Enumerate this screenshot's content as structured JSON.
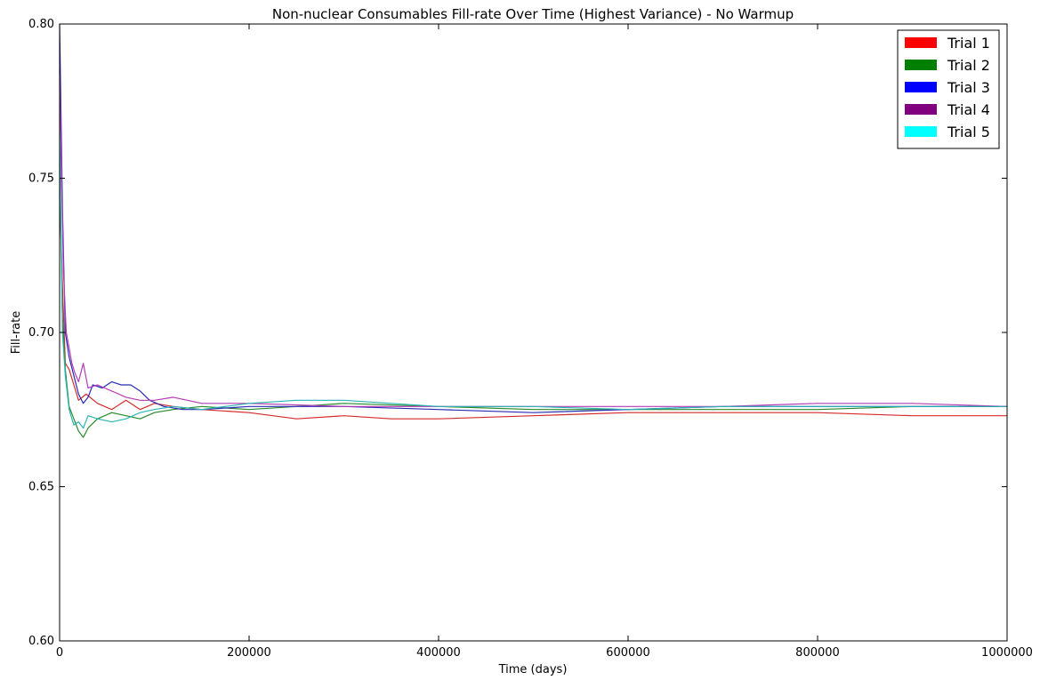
{
  "chart_data": {
    "type": "line",
    "title": "Non-nuclear Consumables Fill-rate Over Time (Highest Variance) - No Warmup",
    "xlabel": "Time (days)",
    "ylabel": "Fill-rate",
    "xlim": [
      0,
      1000000
    ],
    "ylim": [
      0.6,
      0.8
    ],
    "xticks": [
      0,
      200000,
      400000,
      600000,
      800000,
      1000000
    ],
    "xtick_labels": [
      "0",
      "200000",
      "400000",
      "600000",
      "800000",
      "1000000"
    ],
    "yticks": [
      0.6,
      0.65,
      0.7,
      0.75,
      0.8
    ],
    "ytick_labels": [
      "0.60",
      "0.65",
      "0.70",
      "0.75",
      "0.80"
    ],
    "grid": false,
    "legend_position": "top-right",
    "series": [
      {
        "name": "Trial 1",
        "color": "#ff0000",
        "line_color": "#d42a2a",
        "x": [
          0,
          3000,
          6000,
          10000,
          15000,
          20000,
          28000,
          40000,
          55000,
          70000,
          85000,
          100000,
          120000,
          150000,
          200000,
          250000,
          300000,
          350000,
          400000,
          500000,
          600000,
          700000,
          800000,
          900000,
          1000000
        ],
        "y": [
          0.745,
          0.715,
          0.69,
          0.688,
          0.683,
          0.678,
          0.68,
          0.677,
          0.675,
          0.678,
          0.675,
          0.677,
          0.676,
          0.675,
          0.674,
          0.672,
          0.673,
          0.672,
          0.672,
          0.673,
          0.674,
          0.674,
          0.674,
          0.673,
          0.673
        ]
      },
      {
        "name": "Trial 2",
        "color": "#008000",
        "line_color": "#2a8a2a",
        "x": [
          0,
          3000,
          6000,
          10000,
          15000,
          20000,
          25000,
          30000,
          40000,
          55000,
          70000,
          85000,
          100000,
          120000,
          150000,
          200000,
          250000,
          300000,
          400000,
          500000,
          600000,
          700000,
          800000,
          900000,
          1000000
        ],
        "y": [
          0.755,
          0.705,
          0.688,
          0.676,
          0.672,
          0.668,
          0.666,
          0.669,
          0.672,
          0.674,
          0.673,
          0.672,
          0.674,
          0.675,
          0.676,
          0.675,
          0.676,
          0.677,
          0.676,
          0.675,
          0.675,
          0.675,
          0.675,
          0.676,
          0.676
        ]
      },
      {
        "name": "Trial 3",
        "color": "#0000ff",
        "line_color": "#2a2ab4",
        "x": [
          0,
          3000,
          6000,
          10000,
          15000,
          20000,
          25000,
          30000,
          35000,
          45000,
          55000,
          65000,
          75000,
          85000,
          95000,
          110000,
          130000,
          150000,
          200000,
          300000,
          400000,
          500000,
          600000,
          700000,
          800000,
          900000,
          1000000
        ],
        "y": [
          0.8,
          0.74,
          0.7,
          0.692,
          0.686,
          0.68,
          0.677,
          0.679,
          0.683,
          0.682,
          0.684,
          0.683,
          0.683,
          0.681,
          0.678,
          0.676,
          0.675,
          0.675,
          0.676,
          0.676,
          0.675,
          0.674,
          0.675,
          0.676,
          0.676,
          0.676,
          0.676
        ]
      },
      {
        "name": "Trial 4",
        "color": "#800080",
        "line_color": "#b43cb4",
        "x": [
          0,
          2000,
          4000,
          7000,
          10000,
          13000,
          16000,
          20000,
          25000,
          30000,
          40000,
          55000,
          70000,
          85000,
          100000,
          120000,
          150000,
          200000,
          300000,
          400000,
          500000,
          600000,
          700000,
          800000,
          900000,
          1000000
        ],
        "y": [
          0.785,
          0.75,
          0.72,
          0.7,
          0.695,
          0.69,
          0.687,
          0.684,
          0.69,
          0.682,
          0.683,
          0.681,
          0.679,
          0.678,
          0.678,
          0.679,
          0.677,
          0.677,
          0.676,
          0.676,
          0.676,
          0.676,
          0.676,
          0.677,
          0.677,
          0.676
        ]
      },
      {
        "name": "Trial 5",
        "color": "#00ffff",
        "line_color": "#2ab4b4",
        "x": [
          0,
          3000,
          6000,
          10000,
          15000,
          20000,
          25000,
          30000,
          40000,
          55000,
          70000,
          85000,
          100000,
          120000,
          150000,
          200000,
          250000,
          300000,
          400000,
          500000,
          600000,
          700000,
          800000,
          900000,
          1000000
        ],
        "y": [
          0.765,
          0.7,
          0.686,
          0.675,
          0.67,
          0.671,
          0.669,
          0.673,
          0.672,
          0.671,
          0.672,
          0.674,
          0.675,
          0.676,
          0.675,
          0.677,
          0.678,
          0.678,
          0.676,
          0.676,
          0.675,
          0.676,
          0.676,
          0.676,
          0.676
        ]
      }
    ]
  }
}
